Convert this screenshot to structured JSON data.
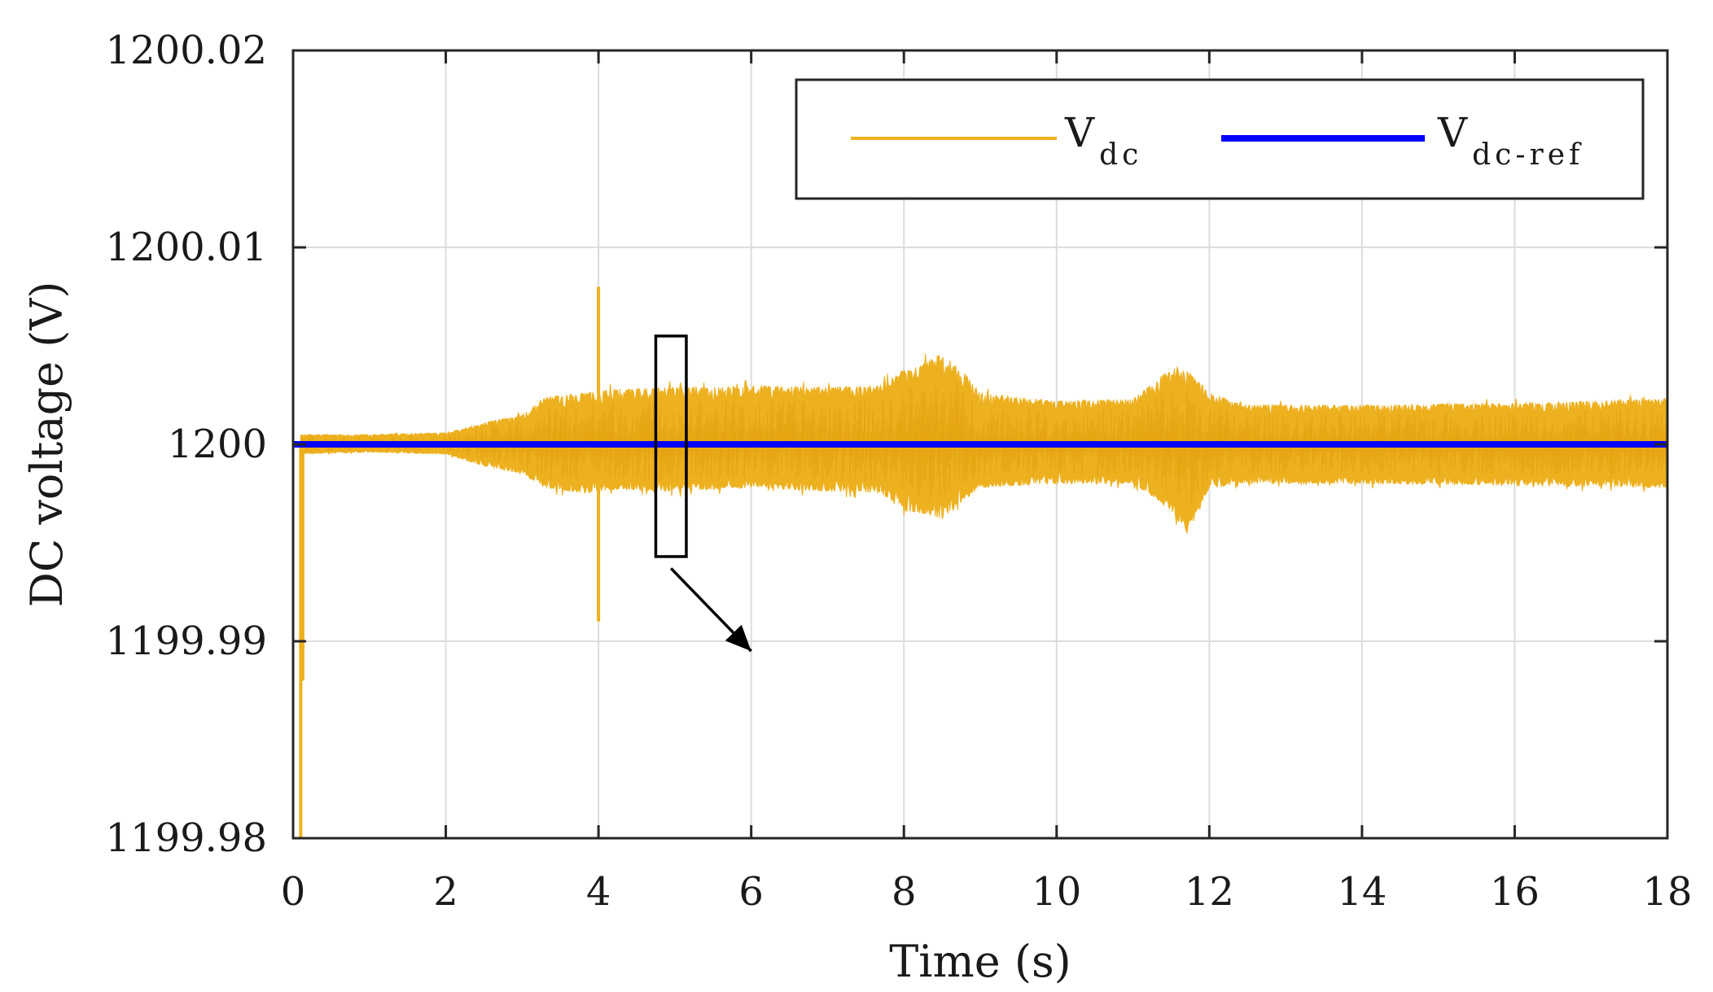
{
  "chart_data": {
    "type": "line",
    "title": "",
    "xlabel": "Time (s)",
    "ylabel": "DC voltage (V)",
    "xlim": [
      0,
      18
    ],
    "ylim": [
      1199.98,
      1200.02
    ],
    "grid": true,
    "x_ticks": [
      0,
      2,
      4,
      6,
      8,
      10,
      12,
      14,
      16,
      18
    ],
    "x_tick_labels": [
      "0",
      "2",
      "4",
      "6",
      "8",
      "10",
      "12",
      "14",
      "16",
      "18"
    ],
    "y_ticks": [
      1199.98,
      1199.99,
      1200,
      1200.01,
      1200.02
    ],
    "y_tick_labels": [
      "1199.98",
      "1199.99",
      "1200",
      "1200.01",
      "1200.02"
    ],
    "legend_position": "top-right",
    "series": [
      {
        "name": "V_dc",
        "label_main": "V",
        "label_sub": "dc",
        "color": "#EDB120",
        "style": "noisy-band",
        "center": 1200.0,
        "startup_dip": {
          "t": 0.1,
          "min": 1199.98
        },
        "spikes": [
          {
            "t": 4.0,
            "max": 1200.008,
            "min": 1199.991
          }
        ],
        "envelope": {
          "t": [
            0.1,
            1.0,
            2.0,
            2.5,
            3.0,
            3.3,
            3.8,
            4.2,
            5.0,
            6.0,
            7.0,
            7.7,
            8.0,
            8.2,
            8.5,
            8.8,
            9.0,
            10.0,
            11.0,
            11.4,
            11.7,
            12.0,
            12.5,
            14.0,
            16.0,
            18.0
          ],
          "upper": [
            1200.0005,
            1200.0005,
            1200.0006,
            1200.0011,
            1200.0015,
            1200.0024,
            1200.0026,
            1200.0028,
            1200.0029,
            1200.003,
            1200.0029,
            1200.003,
            1200.0038,
            1200.004,
            1200.0046,
            1200.0036,
            1200.0026,
            1200.0022,
            1200.0023,
            1200.0036,
            1200.0038,
            1200.0026,
            1200.002,
            1200.002,
            1200.0021,
            1200.0023
          ],
          "lower": [
            1199.9995,
            1199.9996,
            1199.9995,
            1199.9989,
            1199.9985,
            1199.9978,
            1199.9975,
            1199.9977,
            1199.9976,
            1199.9978,
            1199.9976,
            1199.9975,
            1199.9966,
            1199.9965,
            1199.9962,
            1199.9972,
            1199.9978,
            1199.998,
            1199.998,
            1199.997,
            1199.9956,
            1199.9978,
            1199.998,
            1199.998,
            1199.9979,
            1199.9978
          ]
        }
      },
      {
        "name": "V_dc-ref",
        "label_main": "V",
        "label_sub": "dc-ref",
        "color": "#0000FF",
        "x": [
          0,
          18
        ],
        "y": [
          1200,
          1200
        ]
      }
    ],
    "annotations": [
      {
        "type": "zoom-box",
        "x_range": [
          4.75,
          5.15
        ],
        "y_range": [
          1199.9943,
          1200.0055
        ]
      },
      {
        "type": "arrow",
        "from": [
          4.95,
          1199.9937
        ],
        "to": [
          6.0,
          1199.9895
        ]
      }
    ]
  }
}
